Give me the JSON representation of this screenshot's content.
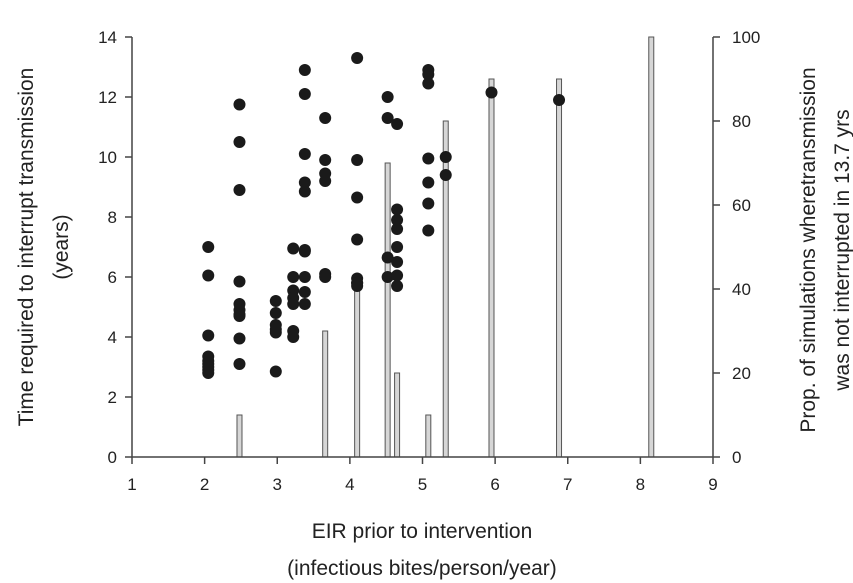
{
  "chart_data": {
    "type": "scatter",
    "title": "",
    "xlabel": "EIR prior to intervention",
    "xlabel_line2": "(infectious bites/person/year)",
    "ylabel": "Time required to interrupt transmission",
    "ylabel_line2": "(years)",
    "y2label": "Prop. of simulations wheretransmission",
    "y2label_line2": "was not interrupted in 13.7 yrs",
    "xlim": [
      1,
      9
    ],
    "ylim": [
      0,
      14
    ],
    "y2lim": [
      0,
      100
    ],
    "x_ticks": [
      "1",
      "2",
      "3",
      "4",
      "5",
      "6",
      "7",
      "8",
      "9"
    ],
    "y_ticks": [
      "0",
      "2",
      "4",
      "6",
      "8",
      "10",
      "12",
      "14"
    ],
    "y2_ticks": [
      "0",
      "20",
      "40",
      "60",
      "80",
      "100"
    ],
    "grid": false,
    "legend": "none",
    "colors": {
      "points": "#1a1a1a",
      "bars_fill": "#d6d6d6",
      "bars_stroke": "#555555",
      "axes": "#444444"
    },
    "series": [
      {
        "type": "scatter",
        "axis": "left",
        "x": [
          2.05,
          2.05,
          2.05,
          2.05,
          2.05,
          2.05,
          2.05,
          2.05,
          2.05,
          2.48,
          2.48,
          2.48,
          2.48,
          2.48,
          2.48,
          2.48,
          2.48,
          2.48,
          2.48,
          2.98,
          2.98,
          2.98,
          2.98,
          2.98,
          2.98,
          3.22,
          3.22,
          3.22,
          3.22,
          3.22,
          3.22,
          3.22,
          3.38,
          3.38,
          3.38,
          3.38,
          3.38,
          3.38,
          3.38,
          3.38,
          3.38,
          3.38,
          3.66,
          3.66,
          3.66,
          3.66,
          3.66,
          3.66,
          4.1,
          4.1,
          4.1,
          4.1,
          4.1,
          4.1,
          4.1,
          4.1,
          4.52,
          4.52,
          4.52,
          4.52,
          4.65,
          4.65,
          4.65,
          4.65,
          4.65,
          4.65,
          4.65,
          4.65,
          5.08,
          5.08,
          5.08,
          5.08,
          5.08,
          5.08,
          5.08,
          5.32,
          5.32,
          5.95,
          6.88
        ],
        "y": [
          7.0,
          6.05,
          4.05,
          3.35,
          3.2,
          3.1,
          3.0,
          2.9,
          2.8,
          11.75,
          10.5,
          8.9,
          5.85,
          5.1,
          4.9,
          4.75,
          4.7,
          3.95,
          3.1,
          5.2,
          4.8,
          4.4,
          4.25,
          4.15,
          2.85,
          6.95,
          6.0,
          5.55,
          5.3,
          5.1,
          4.2,
          4.0,
          12.9,
          12.1,
          10.1,
          9.15,
          8.85,
          6.9,
          6.85,
          6.0,
          5.5,
          5.1,
          11.3,
          9.9,
          9.45,
          9.2,
          6.1,
          6.0,
          13.3,
          9.9,
          8.65,
          7.25,
          5.95,
          5.8,
          5.8,
          5.7,
          12.0,
          11.3,
          6.65,
          6.0,
          11.1,
          8.25,
          7.9,
          7.6,
          7.0,
          6.5,
          6.05,
          5.7,
          12.9,
          12.75,
          12.45,
          9.95,
          9.15,
          8.45,
          7.55,
          10.0,
          9.4,
          12.15,
          11.9
        ]
      },
      {
        "type": "bar",
        "axis": "right",
        "x": [
          2.48,
          3.66,
          4.1,
          4.52,
          4.65,
          5.08,
          5.32,
          5.95,
          6.88,
          8.15
        ],
        "values": [
          10,
          30,
          40,
          70,
          20,
          10,
          80,
          90,
          90,
          100
        ]
      }
    ]
  }
}
